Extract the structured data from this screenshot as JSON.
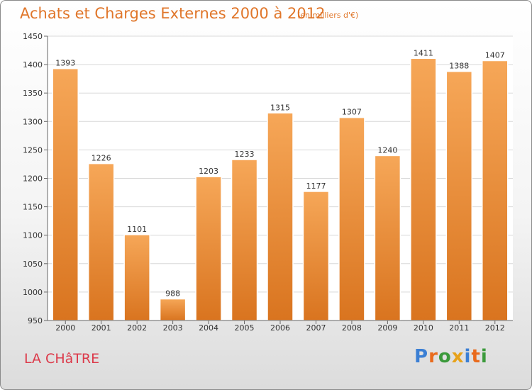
{
  "chart_data": {
    "type": "bar",
    "title": "Achats et Charges Externes 2000 à 2012",
    "subtitle": "(en milliers d'€)",
    "categories": [
      "2000",
      "2001",
      "2002",
      "2003",
      "2004",
      "2005",
      "2006",
      "2007",
      "2008",
      "2009",
      "2010",
      "2011",
      "2012"
    ],
    "values": [
      1393,
      1226,
      1101,
      988,
      1203,
      1233,
      1315,
      1177,
      1307,
      1240,
      1411,
      1388,
      1407
    ],
    "ylim": [
      950,
      1450
    ],
    "yticks": [
      950,
      1000,
      1050,
      1100,
      1150,
      1200,
      1250,
      1300,
      1350,
      1400,
      1450
    ],
    "grid": true,
    "colors": {
      "bar_light": "#f6a758",
      "bar_dark": "#d9741f",
      "grid": "#d8d8d8"
    }
  },
  "commune": "LA CHâTRE",
  "brand": {
    "letters": [
      "P",
      "r",
      "o",
      "x",
      "i",
      "t",
      "i"
    ],
    "colors": [
      "#3b7fd4",
      "#e96a1c",
      "#3b9a3b",
      "#e7a21a",
      "#3b7fd4",
      "#e96a1c",
      "#3b9a3b"
    ]
  }
}
